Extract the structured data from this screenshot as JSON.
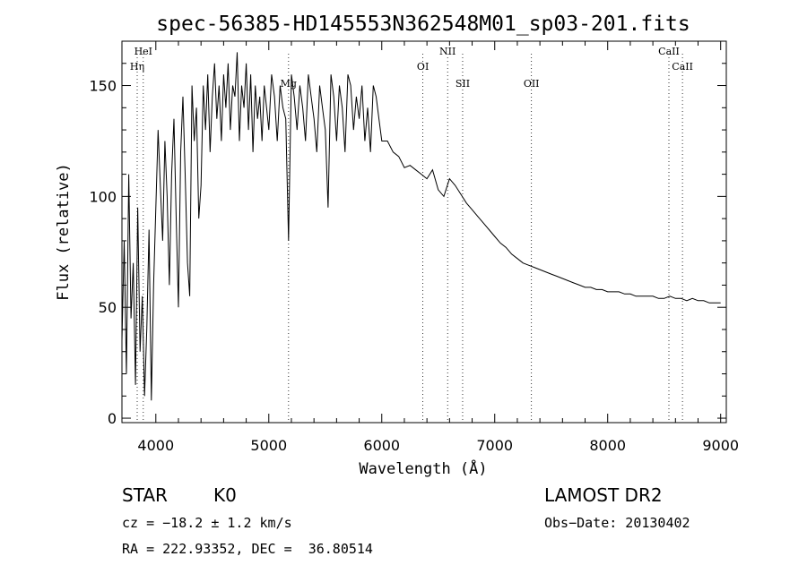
{
  "chart_data": {
    "type": "line",
    "title": "spec-56385-HD145553N362548M01_sp03-201.fits",
    "xlabel": "Wavelength (Å)",
    "ylabel": "Flux (relative)",
    "xlim": [
      3700,
      9050
    ],
    "ylim": [
      -2,
      170
    ],
    "xticks": [
      4000,
      5000,
      6000,
      7000,
      8000,
      9000
    ],
    "yticks": [
      0,
      50,
      100,
      150
    ],
    "grid": false,
    "series": [
      {
        "x": [
          3700,
          3720,
          3740,
          3760,
          3780,
          3800,
          3820,
          3840,
          3860,
          3880,
          3900,
          3920,
          3940,
          3960,
          3980,
          4000,
          4020,
          4040,
          4060,
          4080,
          4100,
          4120,
          4140,
          4160,
          4180,
          4200,
          4220,
          4240,
          4260,
          4280,
          4300,
          4320,
          4340,
          4360,
          4380,
          4400,
          4420,
          4440,
          4460,
          4480,
          4500,
          4520,
          4540,
          4560,
          4580,
          4600,
          4620,
          4640,
          4660,
          4680,
          4700,
          4720,
          4740,
          4760,
          4780,
          4800,
          4820,
          4840,
          4860,
          4880,
          4900,
          4920,
          4940,
          4960,
          4980,
          5000,
          5025,
          5050,
          5075,
          5100,
          5125,
          5150,
          5175,
          5200,
          5225,
          5250,
          5275,
          5300,
          5325,
          5350,
          5375,
          5400,
          5425,
          5450,
          5475,
          5500,
          5525,
          5550,
          5575,
          5600,
          5625,
          5650,
          5675,
          5700,
          5725,
          5750,
          5775,
          5800,
          5825,
          5850,
          5875,
          5900,
          5925,
          5950,
          5975,
          6000,
          6050,
          6100,
          6150,
          6200,
          6250,
          6300,
          6350,
          6400,
          6450,
          6500,
          6550,
          6600,
          6650,
          6700,
          6750,
          6800,
          6850,
          6900,
          6950,
          7000,
          7050,
          7100,
          7150,
          7200,
          7250,
          7300,
          7350,
          7400,
          7450,
          7500,
          7550,
          7600,
          7650,
          7700,
          7750,
          7800,
          7850,
          7900,
          7950,
          8000,
          8050,
          8100,
          8150,
          8200,
          8250,
          8300,
          8350,
          8400,
          8450,
          8500,
          8550,
          8600,
          8650,
          8700,
          8750,
          8800,
          8850,
          8900,
          8950,
          9000
        ],
        "y": [
          35,
          80,
          20,
          110,
          45,
          70,
          15,
          95,
          30,
          55,
          10,
          40,
          85,
          8,
          60,
          95,
          130,
          105,
          80,
          125,
          100,
          60,
          110,
          135,
          90,
          50,
          120,
          145,
          110,
          70,
          55,
          150,
          125,
          140,
          90,
          105,
          150,
          130,
          155,
          120,
          145,
          160,
          135,
          150,
          125,
          155,
          140,
          160,
          130,
          150,
          145,
          165,
          125,
          150,
          140,
          160,
          130,
          155,
          120,
          150,
          135,
          145,
          125,
          150,
          140,
          130,
          155,
          145,
          125,
          150,
          140,
          135,
          80,
          155,
          145,
          130,
          150,
          140,
          125,
          155,
          145,
          135,
          120,
          150,
          140,
          130,
          95,
          155,
          145,
          125,
          150,
          140,
          120,
          155,
          150,
          130,
          145,
          135,
          150,
          125,
          140,
          120,
          150,
          145,
          135,
          125,
          125,
          120,
          118,
          113,
          114,
          112,
          110,
          108,
          112,
          103,
          100,
          108,
          105,
          101,
          97,
          94,
          91,
          88,
          85,
          82,
          79,
          77,
          74,
          72,
          70,
          69,
          68,
          67,
          66,
          65,
          64,
          63,
          62,
          61,
          60,
          59,
          59,
          58,
          58,
          57,
          57,
          57,
          56,
          56,
          55,
          55,
          55,
          55,
          54,
          54,
          55,
          54,
          54,
          53,
          54,
          53,
          53,
          52,
          52,
          52
        ]
      }
    ],
    "spectral_lines": [
      {
        "label": "HeI",
        "x": 3889
      },
      {
        "label": "Hη",
        "x": 3835
      },
      {
        "label": "Mg",
        "x": 5175
      },
      {
        "label": "OI",
        "x": 6364
      },
      {
        "label": "NII",
        "x": 6583
      },
      {
        "label": "SII",
        "x": 6716
      },
      {
        "label": "OII",
        "x": 7325
      },
      {
        "label": "CaII",
        "x": 8542
      },
      {
        "label": "CaII",
        "x": 8662
      }
    ]
  },
  "info": {
    "object_class": "STAR",
    "subclass": "K0",
    "survey": "LAMOST DR2",
    "cz": "cz = −18.2 ± 1.2 km/s",
    "obs_date": "Obs−Date: 20130402",
    "coords": "RA = 222.93352, DEC =  36.80514"
  }
}
